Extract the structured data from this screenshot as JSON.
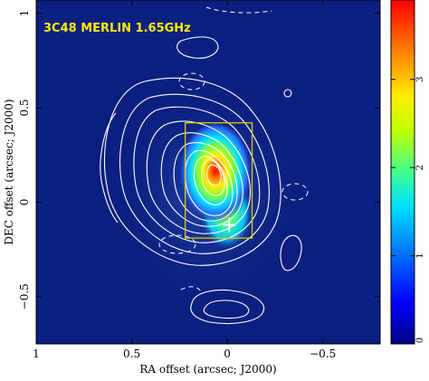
{
  "chart_data": {
    "type": "heatmap",
    "title": "3C48 MERLIN 1.65GHz",
    "xlabel": "RA offset (arcsec; J2000)",
    "ylabel": "DEC offset (arcsec; J2000)",
    "xlim": [
      1.0,
      -0.8
    ],
    "ylim": [
      -0.75,
      1.07
    ],
    "x_ticks": [
      1,
      0.5,
      0,
      -0.5
    ],
    "x_tick_labels": [
      "1",
      "0.5",
      "0",
      "−0.5"
    ],
    "y_ticks": [
      1,
      0.5,
      0,
      -0.5
    ],
    "y_tick_labels": [
      "1",
      "0.5",
      "0",
      "−0.5"
    ],
    "colorbar": {
      "range": [
        0,
        3.9
      ],
      "ticks": [
        0,
        1,
        2,
        3
      ],
      "tick_labels": [
        "0",
        "1",
        "2",
        "3"
      ],
      "colormap": "rainbow (dark blue → red)"
    },
    "background_color": "#0b1f80",
    "title_color": "#ffee00",
    "contour_color": "#ffffff",
    "box_color": "#e6c800",
    "emission_peaks": [
      {
        "ra": 0.06,
        "dec": 0.17,
        "value": 3.9
      },
      {
        "ra": -0.01,
        "dec": -0.05,
        "value": 1.7
      }
    ],
    "highlight_box": {
      "ra_range": [
        0.22,
        -0.13
      ],
      "dec_range": [
        -0.19,
        0.42
      ]
    },
    "cross_marker": {
      "ra": -0.01,
      "dec": -0.12
    }
  }
}
